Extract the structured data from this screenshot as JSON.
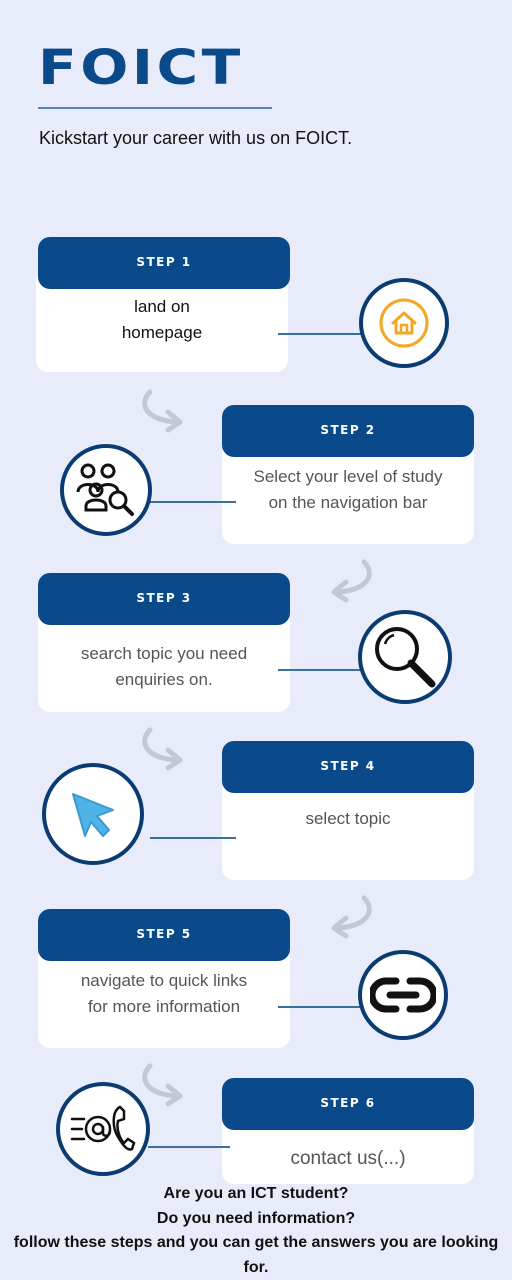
{
  "brand": "FOICT",
  "tagline": "Kickstart your career with us on FOICT.",
  "steps": [
    {
      "label": "STEP 1",
      "lines": [
        "land on",
        "homepage"
      ],
      "icon": "home-icon"
    },
    {
      "label": "STEP 2",
      "lines": [
        "Select your level of study",
        "on the navigation bar"
      ],
      "icon": "users-search-icon"
    },
    {
      "label": "STEP 3",
      "lines": [
        "search topic you need",
        "enquiries on."
      ],
      "icon": "magnifier-icon"
    },
    {
      "label": "STEP 4",
      "lines": [
        "select topic"
      ],
      "icon": "cursor-icon"
    },
    {
      "label": "STEP 5",
      "lines": [
        "navigate to quick links",
        "for more information"
      ],
      "icon": "link-icon"
    },
    {
      "label": "STEP 6",
      "lines": [
        "contact us(...)"
      ],
      "icon": "email-phone-icon"
    }
  ],
  "footer": {
    "line1": "Are you an ICT student?",
    "line2": "Do you need information?",
    "line3": "follow these steps and you can get the answers you are looking",
    "line4": "for."
  },
  "colors": {
    "primary": "#0b4a8a",
    "background": "#e8ecfa",
    "accent": "#f5a623",
    "cursor": "#4fb3e8"
  }
}
